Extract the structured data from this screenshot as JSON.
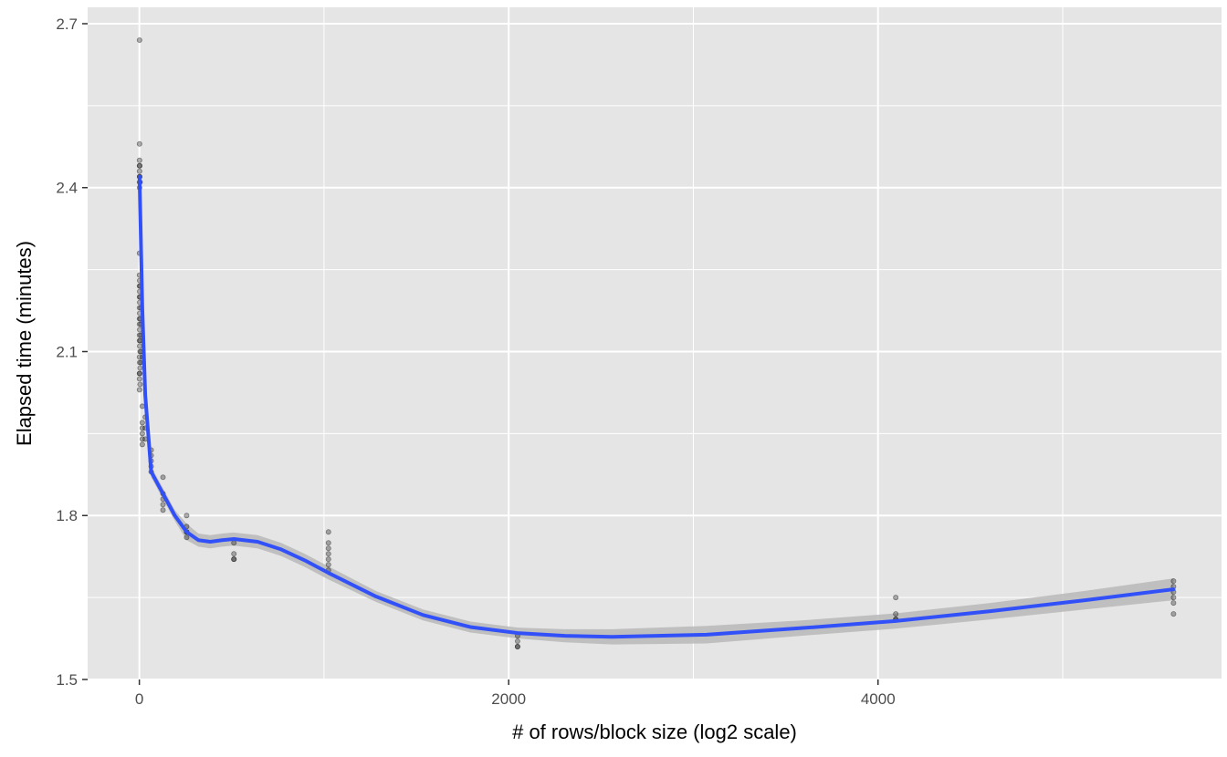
{
  "chart_data": {
    "type": "scatter",
    "title": "",
    "xlabel": "# of rows/block size (log2 scale)",
    "ylabel": "Elapsed time (minutes)",
    "xlim": [
      -280,
      5860
    ],
    "ylim": [
      1.5,
      2.73
    ],
    "x_ticks": [
      0,
      2000,
      4000
    ],
    "x_tick_labels": [
      "0",
      "2000",
      "4000"
    ],
    "x_minor_ticks": [
      1000,
      3000,
      5000
    ],
    "y_ticks": [
      1.5,
      1.8,
      2.1,
      2.4,
      2.7
    ],
    "y_tick_labels": [
      "1.5",
      "1.8",
      "2.1",
      "2.4",
      "2.7"
    ],
    "y_minor_ticks": [
      1.65,
      1.95,
      2.25,
      2.55
    ],
    "grid": true,
    "legend": "none",
    "colors": {
      "panel": "#e5e5e5",
      "grid": "#ffffff",
      "points": "#000000",
      "smooth_line": "#3250f8",
      "confidence_band": "#b8b8b8"
    },
    "series": [
      {
        "kind": "points",
        "groups": [
          {
            "x": 1,
            "y": [
              2.67,
              2.48,
              2.45,
              2.44,
              2.43,
              2.42,
              2.41,
              2.4,
              2.28,
              2.24,
              2.22,
              2.2,
              2.18,
              2.16,
              2.15,
              2.13,
              2.12,
              2.09,
              2.06,
              2.05,
              2.03
            ]
          },
          {
            "x": 2,
            "y": [
              2.44,
              2.42,
              2.23,
              2.21,
              2.19,
              2.17,
              2.14,
              2.11,
              2.08,
              2.06
            ]
          },
          {
            "x": 4,
            "y": [
              2.41,
              2.22,
              2.2,
              2.16,
              2.12,
              2.1,
              2.07,
              2.04
            ]
          },
          {
            "x": 8,
            "y": [
              2.18,
              2.15,
              2.13,
              2.1,
              2.08
            ]
          },
          {
            "x": 16,
            "y": [
              2.09,
              2.0,
              1.97,
              1.96,
              1.95,
              1.94,
              1.93
            ]
          },
          {
            "x": 32,
            "y": [
              1.98,
              1.96,
              1.94
            ]
          },
          {
            "x": 64,
            "y": [
              1.92,
              1.91,
              1.9,
              1.89,
              1.88
            ]
          },
          {
            "x": 128,
            "y": [
              1.87,
              1.84,
              1.83,
              1.82,
              1.81
            ]
          },
          {
            "x": 256,
            "y": [
              1.8,
              1.78,
              1.77,
              1.77,
              1.76
            ]
          },
          {
            "x": 512,
            "y": [
              1.75,
              1.73,
              1.72,
              1.72
            ]
          },
          {
            "x": 1024,
            "y": [
              1.77,
              1.75,
              1.74,
              1.73,
              1.72,
              1.71,
              1.7
            ]
          },
          {
            "x": 2048,
            "y": [
              1.58,
              1.57,
              1.56,
              1.56
            ]
          },
          {
            "x": 4096,
            "y": [
              1.65,
              1.62,
              1.61,
              1.61
            ]
          },
          {
            "x": 5600,
            "y": [
              1.68,
              1.67,
              1.66,
              1.65,
              1.64,
              1.62
            ]
          }
        ]
      },
      {
        "kind": "smooth_line",
        "x": [
          1,
          16,
          32,
          64,
          128,
          192,
          256,
          320,
          384,
          448,
          512,
          640,
          768,
          896,
          1024,
          1280,
          1536,
          1792,
          2048,
          2304,
          2560,
          3072,
          3584,
          4096,
          4608,
          5120,
          5600
        ],
        "y": [
          2.42,
          2.18,
          2.02,
          1.88,
          1.84,
          1.8,
          1.77,
          1.755,
          1.752,
          1.755,
          1.757,
          1.752,
          1.738,
          1.718,
          1.695,
          1.652,
          1.618,
          1.596,
          1.585,
          1.58,
          1.578,
          1.582,
          1.594,
          1.607,
          1.625,
          1.645,
          1.665
        ],
        "band_lower": [
          2.4,
          2.16,
          2.0,
          1.87,
          1.83,
          1.79,
          1.755,
          1.743,
          1.74,
          1.743,
          1.745,
          1.74,
          1.726,
          1.706,
          1.683,
          1.642,
          1.608,
          1.586,
          1.575,
          1.568,
          1.564,
          1.566,
          1.58,
          1.593,
          1.61,
          1.628,
          1.645
        ],
        "band_upper": [
          2.44,
          2.2,
          2.04,
          1.89,
          1.85,
          1.81,
          1.785,
          1.767,
          1.764,
          1.767,
          1.769,
          1.764,
          1.75,
          1.73,
          1.707,
          1.662,
          1.628,
          1.606,
          1.595,
          1.592,
          1.592,
          1.598,
          1.608,
          1.621,
          1.64,
          1.662,
          1.685
        ]
      }
    ]
  }
}
